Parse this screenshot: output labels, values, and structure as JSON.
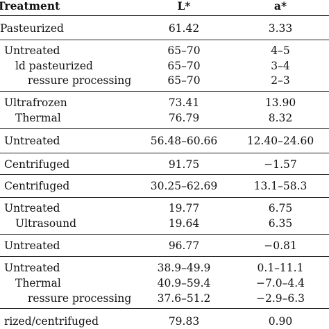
{
  "header": {
    "treatment": "Treatment",
    "l": "L*",
    "a": "a*"
  },
  "rows": [
    {
      "treatment": "Pasteurized",
      "l": "61.42",
      "a": "3.33"
    },
    {
      "treatment": "Untreated",
      "l": "65–70",
      "a": "4–5"
    },
    {
      "treatment": "ld pasteurized",
      "l": "65–70",
      "a": "3–4"
    },
    {
      "treatment": "ressure processing",
      "l": "65–70",
      "a": "2–3"
    },
    {
      "treatment": "Ultrafrozen",
      "l": "73.41",
      "a": "13.90"
    },
    {
      "treatment": "Thermal",
      "l": "76.79",
      "a": "8.32"
    },
    {
      "treatment": "Untreated",
      "l": "56.48–60.66",
      "a": "12.40–24.60"
    },
    {
      "treatment": "Centrifuged",
      "l": "91.75",
      "a": "−1.57"
    },
    {
      "treatment": "Centrifuged",
      "l": "30.25–62.69",
      "a": "13.1–58.3"
    },
    {
      "treatment": "Untreated",
      "l": "19.77",
      "a": "6.75"
    },
    {
      "treatment": "Ultrasound",
      "l": "19.64",
      "a": "6.35"
    },
    {
      "treatment": "Untreated",
      "l": "96.77",
      "a": "−0.81"
    },
    {
      "treatment": "Untreated",
      "l": "38.9–49.9",
      "a": "0.1–11.1"
    },
    {
      "treatment": "Thermal",
      "l": "40.9–59.4",
      "a": "−7.0–4.4"
    },
    {
      "treatment": "ressure processing",
      "l": "37.6–51.2",
      "a": "−2.9–6.3"
    },
    {
      "treatment": "rized/centrifuged",
      "l": "79.83",
      "a": "0.90"
    }
  ]
}
